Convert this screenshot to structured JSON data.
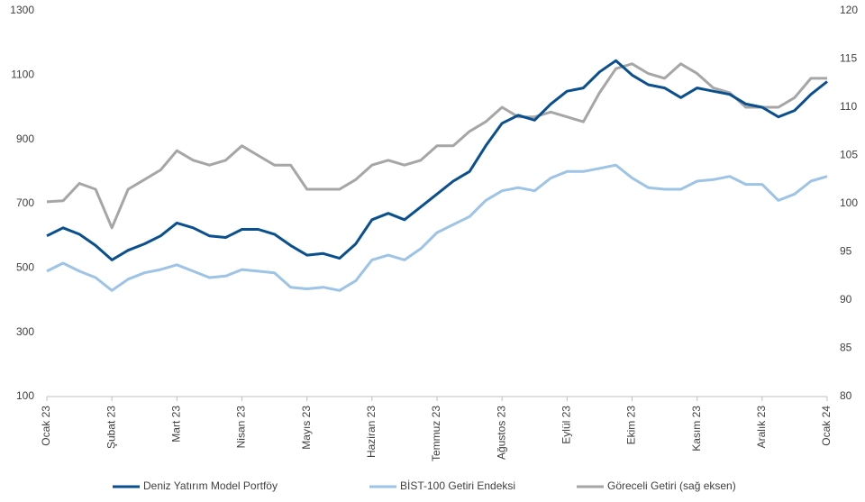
{
  "chart_data": {
    "type": "line",
    "categories": [
      "Ocak 23",
      null,
      null,
      null,
      "Şubat 23",
      null,
      null,
      null,
      "Mart 23",
      null,
      null,
      null,
      "Nisan 23",
      null,
      null,
      null,
      "Mayıs 23",
      null,
      null,
      null,
      "Haziran 23",
      null,
      null,
      null,
      "Temmuz 23",
      null,
      null,
      null,
      "Ağustos 23",
      null,
      null,
      null,
      "Eylül 23",
      null,
      null,
      null,
      "Ekim 23",
      null,
      null,
      null,
      "Kasım 23",
      null,
      null,
      null,
      "Aralık 23",
      null,
      null,
      null,
      "Ocak 24"
    ],
    "series": [
      {
        "name": "Deniz Yatırım Model Portföy",
        "color": "#0a4f8e",
        "values": [
          600,
          625,
          605,
          570,
          525,
          555,
          575,
          600,
          640,
          625,
          600,
          595,
          620,
          620,
          605,
          570,
          540,
          545,
          530,
          575,
          650,
          670,
          650,
          690,
          730,
          770,
          800,
          880,
          950,
          975,
          960,
          1010,
          1050,
          1060,
          1110,
          1145,
          1100,
          1070,
          1060,
          1030,
          1060,
          1050,
          1040,
          1010,
          1000,
          970,
          990,
          1040,
          1080
        ]
      },
      {
        "name": "BİST-100 Getiri Endeksi",
        "color": "#9dc3e6",
        "values": [
          490,
          515,
          490,
          470,
          430,
          465,
          485,
          495,
          510,
          490,
          470,
          475,
          495,
          490,
          485,
          440,
          435,
          440,
          430,
          460,
          525,
          540,
          525,
          560,
          610,
          635,
          660,
          710,
          740,
          750,
          740,
          780,
          800,
          800,
          810,
          820,
          780,
          750,
          745,
          745,
          770,
          775,
          785,
          760,
          760,
          710,
          730,
          770,
          785
        ]
      },
      {
        "name": "Göreceli Getiri (sağ eksen)",
        "color": "#a6a6a6",
        "axis": "y2",
        "values": [
          100.2,
          100.3,
          102.1,
          101.5,
          97.5,
          101.5,
          102.5,
          103.5,
          105.5,
          104.5,
          104,
          104.5,
          106,
          105,
          104,
          104,
          101.5,
          101.5,
          101.5,
          102.5,
          104,
          104.5,
          104,
          104.5,
          106,
          106,
          107.5,
          108.5,
          110,
          109,
          109,
          109.5,
          109,
          108.5,
          111.5,
          114,
          114.5,
          113.5,
          113,
          114.5,
          113.5,
          112,
          111.5,
          110,
          110,
          110,
          111,
          113,
          113
        ]
      }
    ],
    "ylim": [
      100,
      1300
    ],
    "yticks": [
      100,
      300,
      500,
      700,
      900,
      1100,
      1300
    ],
    "y2lim": [
      80,
      120
    ],
    "y2ticks": [
      80,
      85,
      90,
      95,
      100,
      105,
      110,
      115,
      120
    ],
    "grid": false,
    "legend": "bottom"
  }
}
